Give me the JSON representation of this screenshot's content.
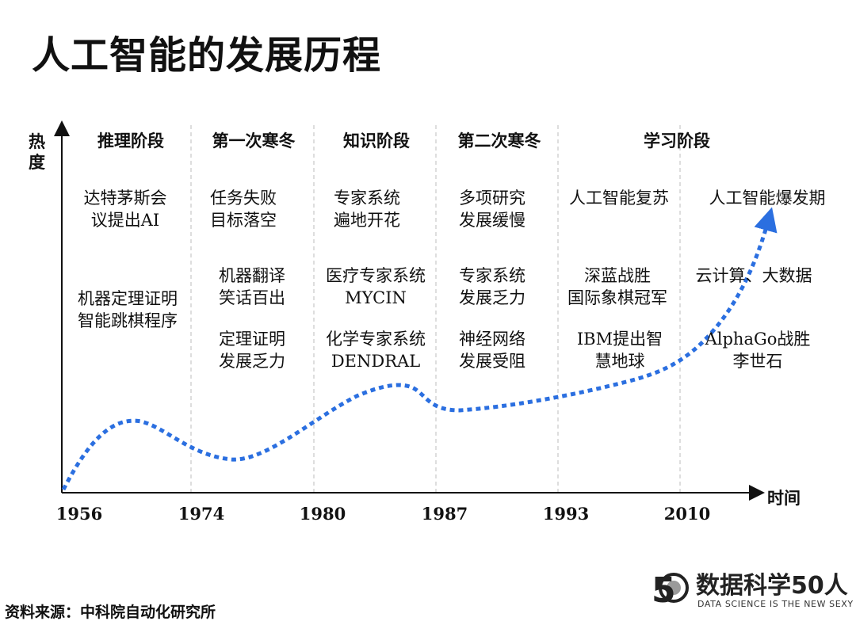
{
  "title": "人工智能的发展历程",
  "axes": {
    "y_label": "热度",
    "x_label": "时间"
  },
  "years": [
    "1956",
    "1974",
    "1980",
    "1987",
    "1993",
    "2010"
  ],
  "stages": [
    {
      "name": "推理阶段",
      "items": [
        [
          "达特茅斯会",
          "议提出AI"
        ],
        [
          "机器定理证明",
          "智能跳棋程序"
        ]
      ]
    },
    {
      "name": "第一次寒冬",
      "items": [
        [
          "任务失败",
          "目标落空"
        ],
        [
          "机器翻译",
          "笑话百出"
        ],
        [
          "定理证明",
          "发展乏力"
        ]
      ]
    },
    {
      "name": "知识阶段",
      "items": [
        [
          "专家系统",
          "遍地开花"
        ],
        [
          "医疗专家系统",
          "MYCIN"
        ],
        [
          "化学专家系统",
          "DENDRAL"
        ]
      ]
    },
    {
      "name": "第二次寒冬",
      "items": [
        [
          "多项研究",
          "发展缓慢"
        ],
        [
          "专家系统",
          "发展乏力"
        ],
        [
          "神经网络",
          "发展受阻"
        ]
      ]
    },
    {
      "name": "学习阶段",
      "items": [
        [
          "人工智能复苏"
        ],
        [
          "深蓝战胜",
          "国际象棋冠军"
        ],
        [
          "IBM提出智",
          "慧地球"
        ]
      ]
    },
    {
      "name": "",
      "items": [
        [
          "人工智能爆发期"
        ],
        [
          "云计算、大数据"
        ],
        [
          "AlphaGo战胜",
          "李世石"
        ]
      ]
    }
  ],
  "source": "资料来源：中科院自动化研究所",
  "logo": {
    "name": "数据科学50人",
    "tagline": "DATA SCIENCE IS THE NEW SEXY",
    "mark": "5"
  },
  "colors": {
    "curve": "#2b6fe0",
    "axis": "#111111",
    "divider": "#bdbdbd"
  }
}
